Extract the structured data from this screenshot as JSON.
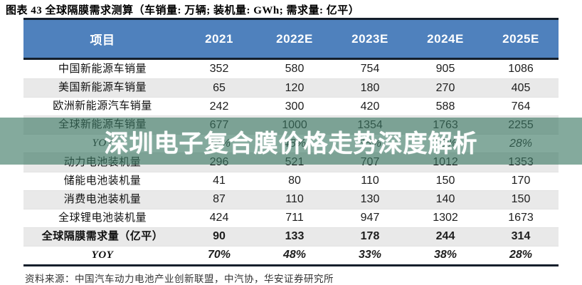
{
  "title": "图表 43 全球隔膜需求测算（车销量: 万辆; 装机量: GWh; 需求量: 亿平）",
  "overlay": {
    "headline": "深圳电子复合膜价格走势深度解析",
    "tint_color": "rgba(60,120,100,0.63)",
    "text_color": "#ffffff"
  },
  "footer": {
    "source": "资料来源：中国汽车动力电池产业创新联盟，中汽协，华安证券研究所"
  },
  "colors": {
    "header_bg": "#4f81bd",
    "header_text": "#ffffff",
    "stripe_bg": "#e9e9e9",
    "border_dark": "#141e2b"
  },
  "chart_data": {
    "type": "table",
    "title": "图表 43 全球隔膜需求测算（车销量: 万辆; 装机量: GWh; 需求量: 亿平）",
    "columns": [
      "项目",
      "2021",
      "2022E",
      "2023E",
      "2024E",
      "2025E"
    ],
    "rows": [
      {
        "label": "中国新能源车销量",
        "values": [
          "352",
          "580",
          "754",
          "905",
          "1086"
        ],
        "shaded": false,
        "bold": false,
        "italic": false
      },
      {
        "label": "美国新能源车销量",
        "values": [
          "65",
          "120",
          "180",
          "270",
          "405"
        ],
        "shaded": true,
        "bold": false,
        "italic": false
      },
      {
        "label": "欧洲新能源汽车销量",
        "values": [
          "242",
          "300",
          "420",
          "588",
          "764"
        ],
        "shaded": false,
        "bold": false,
        "italic": false
      },
      {
        "label": "全球新能源车销量",
        "values": [
          "677",
          "1000",
          "1354",
          "1763",
          "2255"
        ],
        "shaded": true,
        "bold": false,
        "italic": false
      },
      {
        "label": "YOY",
        "values": [
          "72%",
          "48%",
          "35%",
          "30%",
          "28%"
        ],
        "shaded": false,
        "bold": false,
        "italic": true
      },
      {
        "label": "动力电池装机量",
        "values": [
          "296",
          "521",
          "707",
          "1012",
          "1353"
        ],
        "shaded": true,
        "bold": false,
        "italic": false
      },
      {
        "label": "储能电池装机量",
        "values": [
          "41",
          "80",
          "110",
          "150",
          "170"
        ],
        "shaded": false,
        "bold": false,
        "italic": false
      },
      {
        "label": "消费电池装机量",
        "values": [
          "87",
          "110",
          "130",
          "140",
          "150"
        ],
        "shaded": true,
        "bold": false,
        "italic": false
      },
      {
        "label": "全球锂电池装机量",
        "values": [
          "424",
          "711",
          "947",
          "1302",
          "1673"
        ],
        "shaded": false,
        "bold": false,
        "italic": false
      },
      {
        "label": "全球隔膜需求量（亿平）",
        "values": [
          "90",
          "133",
          "178",
          "244",
          "314"
        ],
        "shaded": true,
        "bold": true,
        "italic": false
      },
      {
        "label": "YOY",
        "values": [
          "70%",
          "48%",
          "33%",
          "38%",
          "28%"
        ],
        "shaded": false,
        "bold": true,
        "italic": true
      }
    ]
  }
}
